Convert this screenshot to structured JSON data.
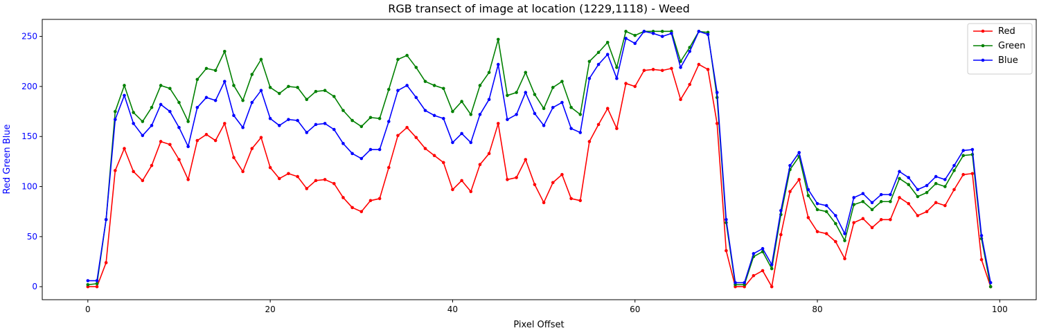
{
  "chart_data": {
    "type": "line",
    "title": "RGB transect of image at location (1229,1118) - Weed",
    "xlabel": "Pixel Offset",
    "ylabel": "Red Green Blue",
    "xlim": [
      -5,
      104
    ],
    "ylim": [
      -13,
      267
    ],
    "xticks": [
      0,
      20,
      40,
      60,
      80,
      100
    ],
    "yticks": [
      0,
      50,
      100,
      150,
      200,
      250
    ],
    "legend_position": "top-right",
    "ylabel_color": "#0000ff",
    "ytick_color": "#0000ff",
    "series": [
      {
        "name": "Red",
        "color": "#ff0000",
        "values": [
          0,
          0,
          24,
          116,
          138,
          115,
          106,
          121,
          145,
          142,
          127,
          107,
          146,
          152,
          146,
          163,
          129,
          115,
          138,
          149,
          119,
          108,
          113,
          110,
          98,
          106,
          107,
          103,
          89,
          79,
          75,
          86,
          88,
          119,
          151,
          159,
          149,
          138,
          131,
          124,
          97,
          106,
          95,
          122,
          133,
          163,
          107,
          109,
          127,
          102,
          84,
          104,
          112,
          88,
          86,
          145,
          162,
          178,
          158,
          203,
          200,
          216,
          217,
          216,
          218,
          187,
          202,
          222,
          217,
          163,
          36,
          0,
          0,
          11,
          16,
          0,
          52,
          95,
          107,
          69,
          55,
          53,
          45,
          28,
          64,
          68,
          59,
          67,
          67,
          89,
          83,
          71,
          75,
          84,
          81,
          97,
          112,
          113,
          27,
          0
        ]
      },
      {
        "name": "Green",
        "color": "#008000",
        "values": [
          2,
          3,
          67,
          175,
          201,
          174,
          165,
          179,
          201,
          198,
          184,
          165,
          207,
          218,
          216,
          235,
          201,
          186,
          212,
          227,
          199,
          193,
          200,
          199,
          187,
          195,
          196,
          190,
          176,
          166,
          160,
          169,
          168,
          197,
          227,
          231,
          219,
          205,
          201,
          198,
          175,
          185,
          172,
          201,
          214,
          247,
          191,
          194,
          214,
          192,
          178,
          199,
          205,
          179,
          172,
          225,
          234,
          244,
          219,
          255,
          251,
          255,
          255,
          255,
          255,
          225,
          239,
          255,
          254,
          189,
          64,
          2,
          2,
          30,
          35,
          18,
          72,
          117,
          130,
          91,
          77,
          75,
          63,
          46,
          82,
          85,
          77,
          85,
          85,
          108,
          102,
          90,
          94,
          103,
          100,
          116,
          131,
          132,
          48,
          0
        ]
      },
      {
        "name": "Blue",
        "color": "#0000ff",
        "values": [
          6,
          6,
          67,
          167,
          191,
          163,
          151,
          161,
          182,
          175,
          159,
          140,
          179,
          189,
          186,
          205,
          171,
          159,
          184,
          196,
          168,
          161,
          167,
          166,
          154,
          162,
          163,
          157,
          143,
          133,
          128,
          137,
          137,
          165,
          196,
          201,
          189,
          176,
          171,
          168,
          144,
          153,
          144,
          172,
          187,
          222,
          167,
          172,
          194,
          173,
          161,
          179,
          184,
          158,
          154,
          208,
          222,
          232,
          208,
          248,
          243,
          255,
          253,
          250,
          253,
          219,
          235,
          255,
          252,
          194,
          67,
          4,
          4,
          33,
          38,
          22,
          76,
          121,
          134,
          97,
          83,
          81,
          71,
          53,
          89,
          93,
          84,
          92,
          92,
          115,
          109,
          97,
          101,
          110,
          107,
          121,
          136,
          137,
          51,
          4
        ]
      }
    ]
  }
}
